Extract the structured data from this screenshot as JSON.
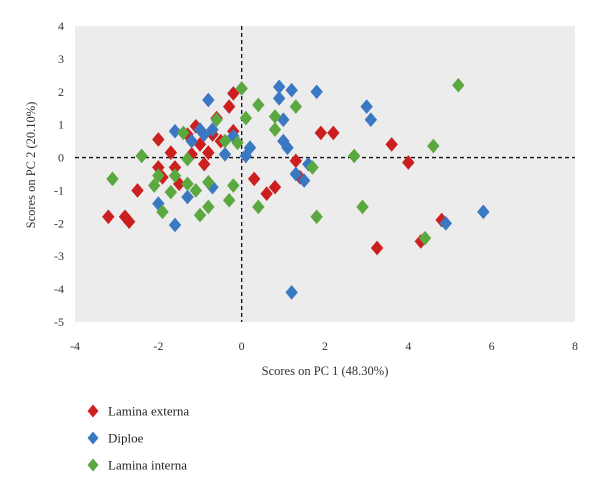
{
  "chart_data": {
    "type": "scatter",
    "xlabel": "Scores on PC 1 (48.30%)",
    "ylabel": "Scores on PC 2 (20.10%)",
    "xlim": [
      -4,
      8
    ],
    "ylim": [
      -5,
      4
    ],
    "xticks": [
      "-4",
      "-2",
      "0",
      "2",
      "4",
      "6",
      "8"
    ],
    "yticks": [
      "4",
      "3",
      "2",
      "1",
      "0",
      "-1",
      "-2",
      "-3",
      "-4",
      "-5"
    ],
    "grid": false,
    "plot_background": "#ececec",
    "reference_lines": {
      "x": 0,
      "y": 0,
      "style": "dashed"
    },
    "legend_position": "bottom-left",
    "marker": "diamond",
    "series": [
      {
        "name": "Lamina externa",
        "color": "#cc1f1f",
        "points": [
          [
            -3.2,
            -1.8
          ],
          [
            -2.8,
            -1.8
          ],
          [
            -2.7,
            -1.95
          ],
          [
            -2.5,
            -1.0
          ],
          [
            -2.0,
            0.55
          ],
          [
            -2.0,
            -0.3
          ],
          [
            -1.9,
            -0.6
          ],
          [
            -1.7,
            0.15
          ],
          [
            -1.6,
            -0.3
          ],
          [
            -1.5,
            -0.8
          ],
          [
            -1.3,
            0.7
          ],
          [
            -1.2,
            0.1
          ],
          [
            -1.1,
            0.95
          ],
          [
            -1.0,
            0.4
          ],
          [
            -0.9,
            -0.2
          ],
          [
            -0.8,
            0.15
          ],
          [
            -0.7,
            0.7
          ],
          [
            -0.6,
            1.2
          ],
          [
            -0.5,
            0.5
          ],
          [
            -0.3,
            1.55
          ],
          [
            -0.2,
            1.95
          ],
          [
            -0.2,
            0.8
          ],
          [
            0.3,
            -0.65
          ],
          [
            0.6,
            -1.1
          ],
          [
            0.8,
            -0.9
          ],
          [
            1.3,
            -0.1
          ],
          [
            1.4,
            -0.6
          ],
          [
            1.9,
            0.75
          ],
          [
            2.2,
            0.75
          ],
          [
            3.6,
            0.4
          ],
          [
            4.0,
            -0.15
          ],
          [
            3.25,
            -2.75
          ],
          [
            4.3,
            -2.55
          ],
          [
            4.8,
            -1.9
          ]
        ]
      },
      {
        "name": "Diploe",
        "color": "#3a78c2",
        "points": [
          [
            -2.0,
            -1.4
          ],
          [
            -1.6,
            0.8
          ],
          [
            -1.6,
            -2.05
          ],
          [
            -1.3,
            -1.2
          ],
          [
            -1.2,
            0.5
          ],
          [
            -1.0,
            0.85
          ],
          [
            -0.9,
            0.7
          ],
          [
            -0.8,
            1.75
          ],
          [
            -0.7,
            0.85
          ],
          [
            -0.7,
            -0.9
          ],
          [
            -0.4,
            0.1
          ],
          [
            -0.2,
            0.65
          ],
          [
            0.1,
            0.05
          ],
          [
            0.2,
            0.3
          ],
          [
            0.9,
            2.15
          ],
          [
            0.9,
            1.8
          ],
          [
            1.0,
            1.15
          ],
          [
            1.0,
            0.5
          ],
          [
            1.1,
            0.3
          ],
          [
            1.2,
            2.05
          ],
          [
            1.3,
            -0.5
          ],
          [
            1.5,
            -0.7
          ],
          [
            1.6,
            -0.2
          ],
          [
            1.8,
            2.0
          ],
          [
            3.0,
            1.55
          ],
          [
            3.1,
            1.15
          ],
          [
            1.2,
            -4.1
          ],
          [
            4.9,
            -2.0
          ],
          [
            5.8,
            -1.65
          ]
        ]
      },
      {
        "name": "Lamina interna",
        "color": "#5aa83f",
        "points": [
          [
            -3.1,
            -0.65
          ],
          [
            -2.4,
            0.05
          ],
          [
            -2.1,
            -0.85
          ],
          [
            -2.0,
            -0.55
          ],
          [
            -1.9,
            -1.65
          ],
          [
            -1.7,
            -1.05
          ],
          [
            -1.6,
            -0.55
          ],
          [
            -1.4,
            0.75
          ],
          [
            -1.3,
            -0.05
          ],
          [
            -1.3,
            -0.8
          ],
          [
            -1.1,
            -1.0
          ],
          [
            -1.0,
            -1.75
          ],
          [
            -0.8,
            -1.5
          ],
          [
            -0.8,
            -0.75
          ],
          [
            -0.6,
            1.15
          ],
          [
            -0.4,
            0.5
          ],
          [
            -0.3,
            -1.3
          ],
          [
            -0.2,
            -0.85
          ],
          [
            -0.1,
            0.45
          ],
          [
            0.0,
            2.1
          ],
          [
            0.1,
            1.2
          ],
          [
            0.4,
            1.6
          ],
          [
            0.4,
            -1.5
          ],
          [
            0.8,
            1.25
          ],
          [
            0.8,
            0.85
          ],
          [
            1.3,
            1.55
          ],
          [
            1.7,
            -0.3
          ],
          [
            1.8,
            -1.8
          ],
          [
            2.7,
            0.05
          ],
          [
            2.9,
            -1.5
          ],
          [
            4.4,
            -2.45
          ],
          [
            4.6,
            0.35
          ],
          [
            5.2,
            2.2
          ]
        ]
      }
    ]
  }
}
